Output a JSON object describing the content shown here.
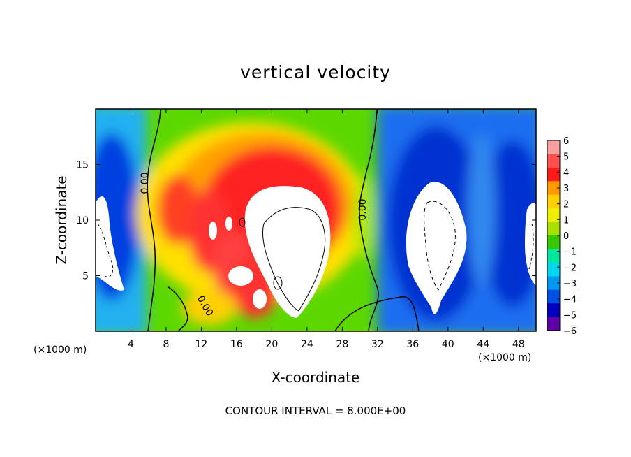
{
  "chart_data": {
    "type": "heatmap",
    "title": "vertical velocity",
    "xlabel": "X-coordinate",
    "ylabel": "Z-coordinate",
    "x_unit_label": "(×1000 m)",
    "x_unit_label_right": "(×1000 m)",
    "xlim": [
      0,
      50
    ],
    "ylim": [
      0,
      20
    ],
    "x_ticks": [
      4,
      8,
      12,
      16,
      20,
      24,
      28,
      32,
      36,
      40,
      44,
      48
    ],
    "y_ticks": [
      5,
      10,
      15
    ],
    "colorbar": {
      "min": -6,
      "max": 6,
      "ticks": [
        6,
        5,
        4,
        3,
        2,
        1,
        0,
        -1,
        -2,
        -3,
        -4,
        -5,
        -6
      ],
      "tick_labels": [
        "6",
        "5",
        "4",
        "3",
        "2",
        "1",
        "0",
        "−1",
        "−2",
        "−3",
        "−4",
        "−5",
        "−6"
      ],
      "colors": [
        "#f8a0a0",
        "#ff5050",
        "#ff1a1a",
        "#ff9900",
        "#ffd000",
        "#eeee00",
        "#a8e000",
        "#38c800",
        "#00e8a0",
        "#00d8f0",
        "#0098f0",
        "#0050e8",
        "#0000c0",
        "#6000a8"
      ]
    },
    "contour_labels": [
      "0.00",
      "0.00",
      "0.00"
    ],
    "features": [
      {
        "kind": "updraft",
        "x": 22.5,
        "z": 7.5,
        "w": 9
      },
      {
        "kind": "updraft-edge",
        "x": 17,
        "z": 11,
        "w": 4.5
      },
      {
        "kind": "updraft-edge",
        "x": 14,
        "z": 11,
        "w": 4
      },
      {
        "kind": "updraft-edge",
        "x": 10.5,
        "z": 11.5,
        "w": 3
      },
      {
        "kind": "downdraft",
        "x": 39.5,
        "z": 7.5,
        "w": -9
      },
      {
        "kind": "downdraft",
        "x": 1.5,
        "z": 8.5,
        "w": -8
      },
      {
        "kind": "downdraft",
        "x": 49.5,
        "z": 8,
        "w": -8
      }
    ],
    "grid": false,
    "legend": "colorbar-right"
  },
  "footer": "CONTOUR INTERVAL = 8.000E+00"
}
